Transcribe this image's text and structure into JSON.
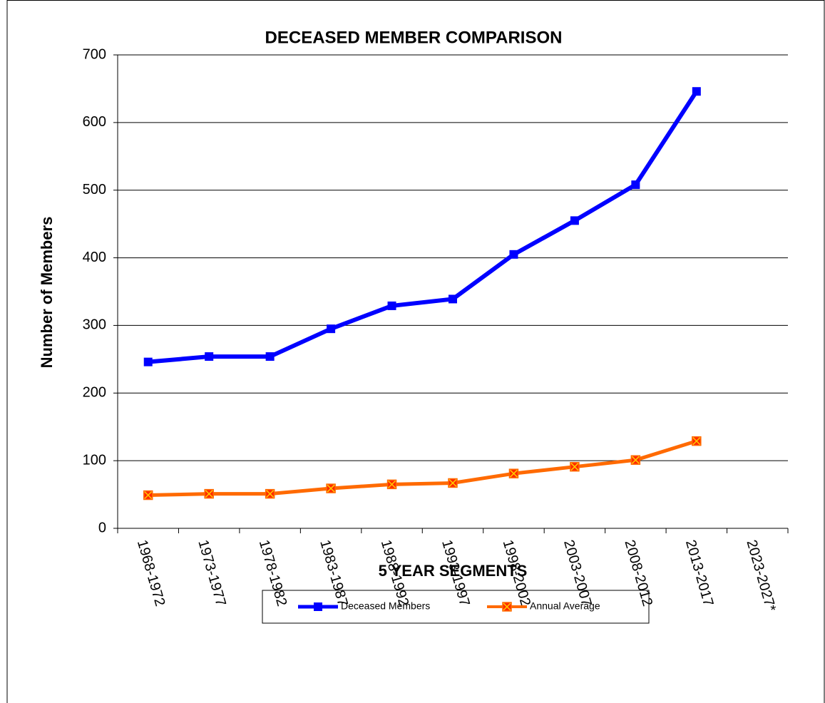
{
  "chart_data": {
    "type": "line",
    "title": "DECEASED MEMBER COMPARISON",
    "x_label": "5 YEAR SEGMENTS",
    "y_label": "Number of Members",
    "categories": [
      "1968-1972",
      "1973-1977",
      "1978-1982",
      "1983-1987",
      "1988-1992",
      "1993-1997",
      "1998-2002",
      "2003-2007",
      "2008-2012",
      "2013-2017",
      "2023-2027*"
    ],
    "series": [
      {
        "name": "Deceased Members",
        "color": "#0000ff",
        "values": [
          246,
          254,
          254,
          295,
          329,
          339,
          405,
          455,
          508,
          646,
          null
        ]
      },
      {
        "name": "Annual Average",
        "color": "#ff6a00",
        "values": [
          49,
          51,
          51,
          59,
          65,
          67,
          81,
          91,
          101,
          129,
          null
        ]
      }
    ],
    "ylim": [
      0,
      700
    ],
    "yticks": [
      0,
      100,
      200,
      300,
      400,
      500,
      600,
      700
    ],
    "grid": true,
    "legend": "bottom"
  }
}
